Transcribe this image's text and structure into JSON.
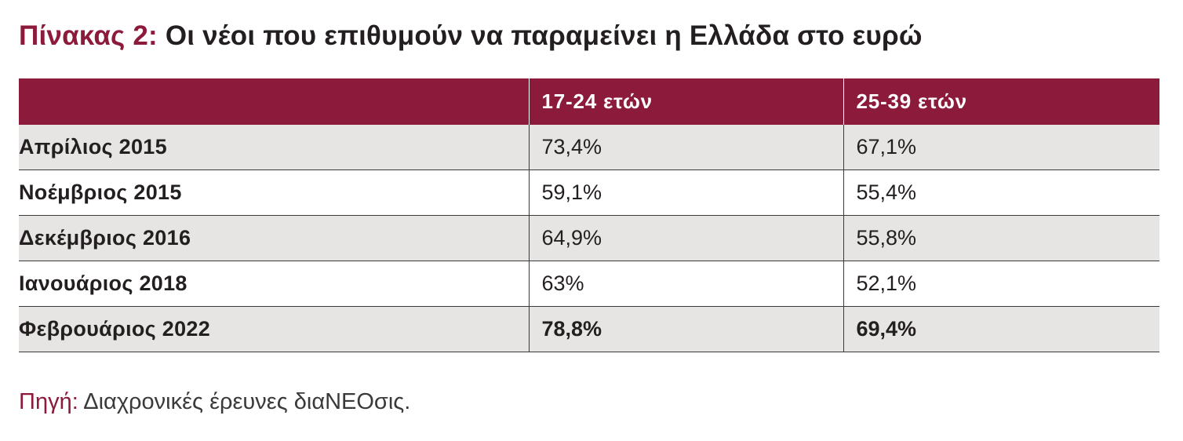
{
  "title": {
    "prefix": "Πίνακας 2:",
    "text": "Οι νέοι που επιθυμούν να παραμείνει η Ελλάδα στο ευρώ"
  },
  "chart_data": {
    "type": "table",
    "columns": [
      "",
      "17-24 ετών",
      "25-39 ετών"
    ],
    "rows": [
      {
        "label": "Απρίλιος 2015",
        "values": [
          "73,4%",
          "67,1%"
        ],
        "shaded": true,
        "bold": false
      },
      {
        "label": "Νοέμβριος 2015",
        "values": [
          "59,1%",
          "55,4%"
        ],
        "shaded": false,
        "bold": false
      },
      {
        "label": "Δεκέμβριος 2016",
        "values": [
          "64,9%",
          "55,8%"
        ],
        "shaded": true,
        "bold": false
      },
      {
        "label": "Ιανουάριος 2018",
        "values": [
          "63%",
          "52,1%"
        ],
        "shaded": false,
        "bold": false
      },
      {
        "label": "Φεβρουάριος 2022",
        "values": [
          "78,8%",
          "69,4%"
        ],
        "shaded": true,
        "bold": true
      }
    ]
  },
  "source": {
    "prefix": "Πηγή:",
    "text": "Διαχρονικές έρευνες διαΝΕΟσις."
  },
  "colors": {
    "accent": "#8c1a3b",
    "row_shade": "#e6e5e3",
    "text": "#231f20"
  }
}
